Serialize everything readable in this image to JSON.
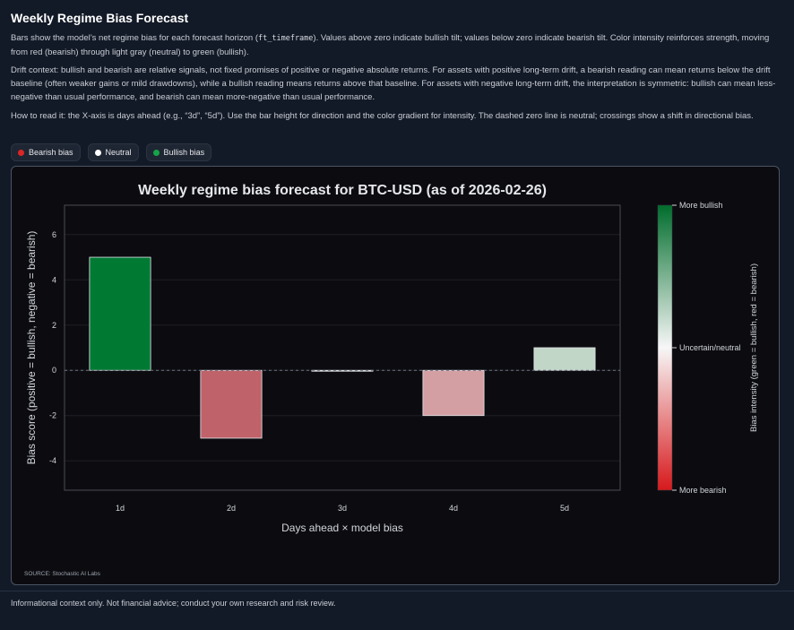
{
  "header": {
    "title": "Weekly Regime Bias Forecast",
    "para1_a": "Bars show the model’s net regime bias for each forecast horizon (",
    "para1_code": "ft_timeframe",
    "para1_b": "). Values above zero indicate bullish tilt; values below zero indicate bearish tilt. Color intensity reinforces strength, moving from red (bearish) through light gray (neutral) to green (bullish).",
    "para2": "Drift context: bullish and bearish are relative signals, not fixed promises of positive or negative absolute returns. For assets with positive long-term drift, a bearish reading can mean returns below the drift baseline (often weaker gains or mild drawdowns), while a bullish reading means returns above that baseline. For assets with negative long-term drift, the interpretation is symmetric: bullish can mean less-negative than usual performance, and bearish can mean more-negative than usual performance.",
    "para3": "How to read it: the X-axis is days ahead (e.g., “3d”, “5d”). Use the bar height for direction and the color gradient for intensity. The dashed zero line is neutral; crossings show a shift in directional bias."
  },
  "legend": {
    "items": [
      {
        "label": "Bearish bias",
        "color": "#dc2626"
      },
      {
        "label": "Neutral",
        "color": "#ffffff"
      },
      {
        "label": "Bullish bias",
        "color": "#16a34a"
      }
    ]
  },
  "chart_data": {
    "type": "bar",
    "title": "Weekly regime bias forecast for BTC-USD (as of 2026-02-26)",
    "xlabel": "Days ahead × model bias",
    "ylabel": "Bias score (positive = bullish, negative = bearish)",
    "categories": [
      "1d",
      "2d",
      "3d",
      "4d",
      "5d"
    ],
    "values": [
      5,
      -3,
      0,
      -2,
      1
    ],
    "ylim": [
      -5.3,
      7.3
    ],
    "yticks": [
      -4,
      -2,
      0,
      2,
      4,
      6
    ],
    "grid": true,
    "zero_line": "dashed",
    "bar_colors": [
      "#007a33",
      "#c0626a",
      "#d8d8d8",
      "#d39fa3",
      "#c2d6c8"
    ],
    "colorbar": {
      "label": "Bias intensity (green = bullish, red = bearish)",
      "top_label": "More bullish",
      "mid_label": "Uncertain/neutral",
      "bottom_label": "More bearish",
      "top_color": "#006d2c",
      "mid_color": "#f7f7f7",
      "bottom_color": "#d7191c"
    },
    "source": "SOURCE: Stochastic AI Labs"
  },
  "footer": {
    "text": "Informational context only. Not financial advice; conduct your own research and risk review."
  }
}
